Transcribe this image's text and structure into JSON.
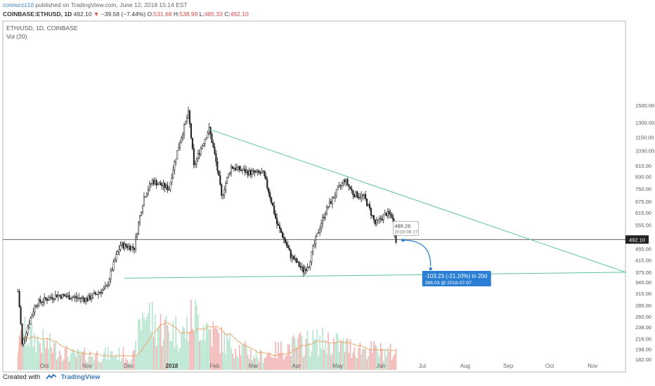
{
  "header": {
    "author": "connorzz10",
    "published": "published on TradingView.com, June 12, 2018 15:14 EST",
    "symbol": "COINBASE:ETHUSD, 1D",
    "last": "492.10",
    "change": "−39.58 (−7.44%)",
    "o_label": "O:",
    "o_value": "531.68",
    "h_label": "H:",
    "h_value": "538.99",
    "l_label": "L:",
    "l_value": "485.33",
    "c_label": "C:",
    "c_value": "492.10"
  },
  "footer": {
    "created_with": "Created with",
    "brand": "TradingView"
  },
  "colors": {
    "up": "#5cc490",
    "down": "#e05454",
    "trend": "#5ec39a",
    "accent": "#2a7fd4",
    "ma": "#f0a060"
  },
  "chart_data": {
    "type": "candlestick",
    "title": "ETH/USD, 1D, COINBASE",
    "indicator": "Vol (20)",
    "y_ticks": [
      "1500.00",
      "1300.00",
      "1150.00",
      "1030.00",
      "910.00",
      "830.00",
      "750.00",
      "675.00",
      "615.00",
      "555.00",
      "455.00",
      "415.00",
      "375.00",
      "345.00",
      "315.00",
      "285.00",
      "260.00",
      "238.00",
      "216.00",
      "198.00",
      "182.00"
    ],
    "x_ticks": [
      "Oct",
      "Nov",
      "Dec",
      "2018",
      "Feb",
      "Mar",
      "Apr",
      "May",
      "Jun",
      "Jul",
      "Aug",
      "Sep",
      "Oct",
      "Nov"
    ],
    "last_price": "492.10",
    "price_keypoints": [
      [
        "2017-09-12",
        320
      ],
      [
        "2017-09-15",
        205
      ],
      [
        "2017-09-25",
        290
      ],
      [
        "2017-10-10",
        310
      ],
      [
        "2017-11-01",
        300
      ],
      [
        "2017-11-15",
        330
      ],
      [
        "2017-11-25",
        470
      ],
      [
        "2017-12-05",
        460
      ],
      [
        "2017-12-12",
        700
      ],
      [
        "2017-12-18",
        800
      ],
      [
        "2017-12-30",
        750
      ],
      [
        "2018-01-10",
        1250
      ],
      [
        "2018-01-13",
        1400
      ],
      [
        "2018-01-17",
        900
      ],
      [
        "2018-01-28",
        1230
      ],
      [
        "2018-02-06",
        700
      ],
      [
        "2018-02-13",
        900
      ],
      [
        "2018-02-25",
        860
      ],
      [
        "2018-03-08",
        850
      ],
      [
        "2018-03-18",
        560
      ],
      [
        "2018-03-28",
        430
      ],
      [
        "2018-04-06",
        380
      ],
      [
        "2018-04-10",
        400
      ],
      [
        "2018-04-22",
        620
      ],
      [
        "2018-05-06",
        810
      ],
      [
        "2018-05-12",
        720
      ],
      [
        "2018-05-20",
        700
      ],
      [
        "2018-05-28",
        560
      ],
      [
        "2018-06-05",
        610
      ],
      [
        "2018-06-09",
        600
      ],
      [
        "2018-06-12",
        492
      ]
    ],
    "volume_keypoints": [
      [
        "2017-09-12",
        30
      ],
      [
        "2017-09-15",
        62
      ],
      [
        "2017-10-20",
        24
      ],
      [
        "2017-11-25",
        26
      ],
      [
        "2017-12-05",
        22
      ],
      [
        "2017-12-12",
        105
      ],
      [
        "2017-12-20",
        75
      ],
      [
        "2018-01-10",
        60
      ],
      [
        "2018-01-17",
        90
      ],
      [
        "2018-02-06",
        50
      ],
      [
        "2018-03-05",
        22
      ],
      [
        "2018-03-18",
        32
      ],
      [
        "2018-04-06",
        45
      ],
      [
        "2018-04-22",
        48
      ],
      [
        "2018-05-10",
        38
      ],
      [
        "2018-06-12",
        28
      ]
    ],
    "trendlines": [
      {
        "start": [
          "2018-01-28",
          1230
        ],
        "end": [
          "2018-11-25",
          375
        ]
      },
      {
        "start": [
          "2017-11-28",
          357
        ],
        "end": [
          "2018-11-25",
          375
        ]
      }
    ],
    "projection": {
      "from_label": "489.26",
      "from_date": "2018-06-17",
      "change": "-103.23 (-21.10%) in 20d",
      "target": "386.03 @ 2018-07-07"
    }
  }
}
